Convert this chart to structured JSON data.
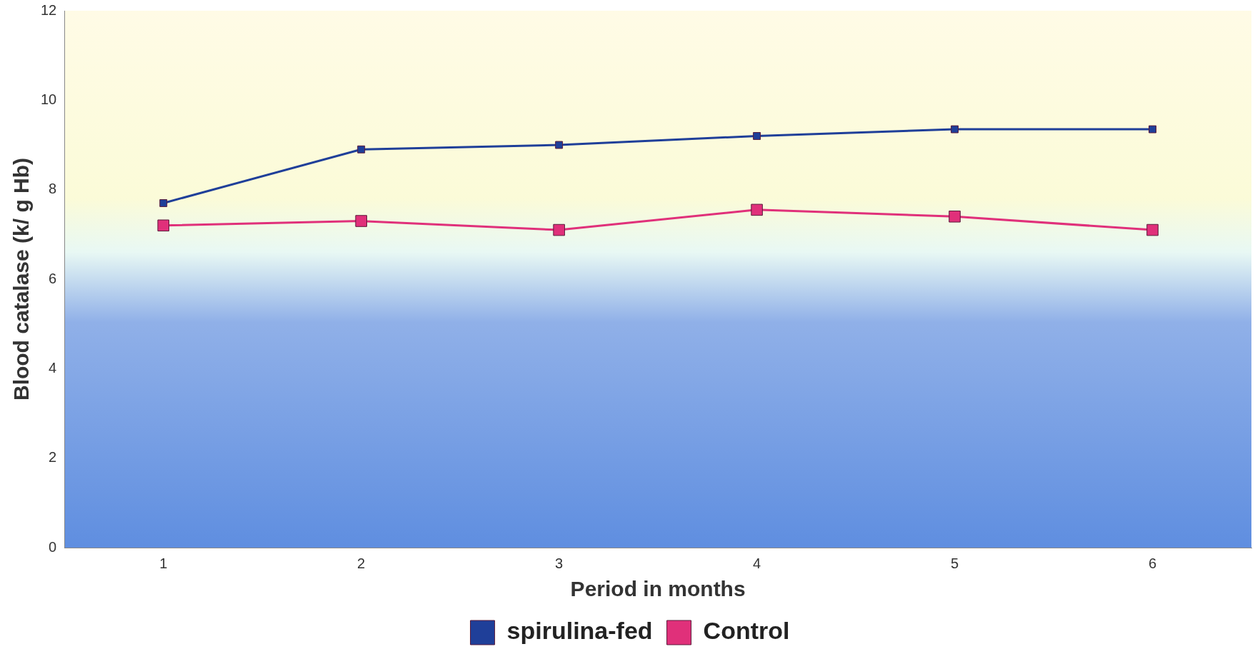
{
  "chart_data": {
    "type": "line",
    "xlabel": "Period in months",
    "ylabel": "Blood catalase (k/ g Hb)",
    "categories": [
      "1",
      "2",
      "3",
      "4",
      "5",
      "6"
    ],
    "series": [
      {
        "name": "spirulina-fed",
        "color": "#1f3f99",
        "values": [
          7.7,
          8.9,
          9.0,
          9.2,
          9.35,
          9.35
        ]
      },
      {
        "name": "Control",
        "color": "#e0307a",
        "values": [
          7.2,
          7.3,
          7.1,
          7.55,
          7.4,
          7.1
        ]
      }
    ],
    "ylim": [
      0,
      12
    ],
    "yticks": [
      0,
      2,
      4,
      6,
      8,
      10,
      12
    ],
    "grid": false,
    "legend": "bottom",
    "marker": "square",
    "line_style": "solid"
  }
}
